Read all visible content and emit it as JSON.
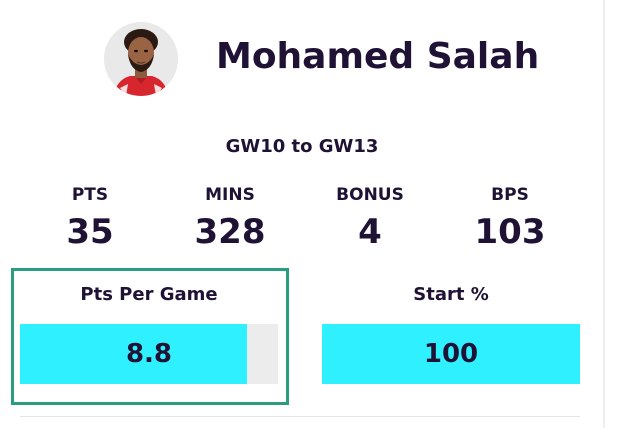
{
  "player": {
    "name": "Mohamed Salah",
    "avatar_icon": "player-portrait-icon"
  },
  "period": "GW10 to GW13",
  "stats": [
    {
      "label": "PTS",
      "value": "35"
    },
    {
      "label": "MINS",
      "value": "328"
    },
    {
      "label": "BONUS",
      "value": "4"
    },
    {
      "label": "BPS",
      "value": "103"
    }
  ],
  "metrics": {
    "pts_per_game": {
      "title": "Pts Per Game",
      "value": "8.8",
      "fill_fraction": 0.88
    },
    "start_pct": {
      "title": "Start %",
      "value": "100",
      "fill_fraction": 1.0
    }
  },
  "colors": {
    "text": "#1f1235",
    "bar_fill": "#2ff0ff",
    "bar_track": "#ececec",
    "highlight": "#2a9d7f"
  }
}
